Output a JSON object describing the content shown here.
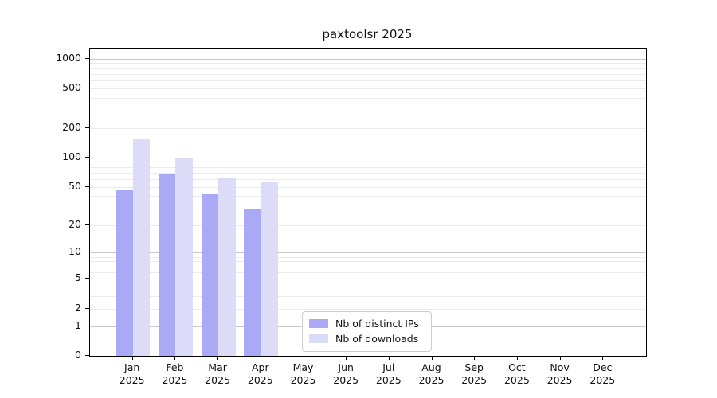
{
  "chart_data": {
    "type": "bar",
    "title": "paxtoolsr 2025",
    "categories": [
      "Jan",
      "Feb",
      "Mar",
      "Apr",
      "May",
      "Jun",
      "Jul",
      "Aug",
      "Sep",
      "Oct",
      "Nov",
      "Dec"
    ],
    "x_year_label": "2025",
    "series": [
      {
        "name": "Nb of distinct IPs",
        "color": "#a9a9f6",
        "values": [
          46,
          68,
          42,
          29,
          0,
          0,
          0,
          0,
          0,
          0,
          0,
          0
        ]
      },
      {
        "name": "Nb of downloads",
        "color": "#dcdcf9",
        "values": [
          153,
          99,
          62,
          56,
          0,
          0,
          0,
          0,
          0,
          0,
          0,
          0
        ]
      }
    ],
    "y_axis": {
      "scale": "log1p",
      "tick_labels": [
        0,
        1,
        2,
        5,
        10,
        20,
        50,
        100,
        200,
        500,
        1000
      ],
      "ylim": [
        0,
        1266
      ]
    },
    "grid": {
      "major_lines": [
        1,
        10,
        100,
        1000
      ],
      "minor_multipliers": [
        2,
        3,
        4,
        5,
        6,
        7,
        8,
        9
      ],
      "minor_decades": [
        1,
        10,
        100
      ]
    },
    "legend": {
      "position": "lower-center-inside"
    }
  },
  "colors": {
    "major_grid": "#c8c8c8",
    "minor_grid": "#ebebeb",
    "spine": "#000000",
    "text": "#111111",
    "legend_border": "#cccccc",
    "background": "#ffffff"
  }
}
